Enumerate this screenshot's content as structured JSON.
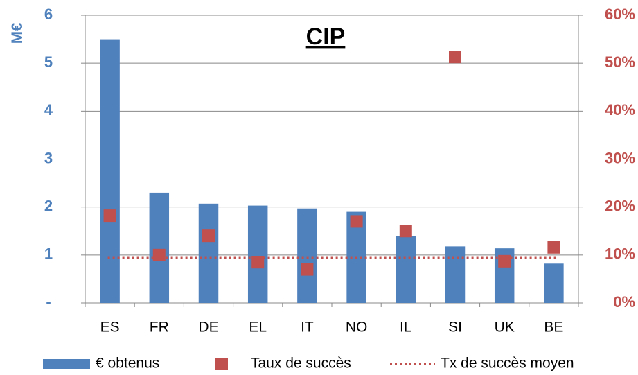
{
  "chart_data": {
    "type": "bar",
    "title": "CIP",
    "y_label": "M€",
    "categories": [
      "ES",
      "FR",
      "DE",
      "EL",
      "IT",
      "NO",
      "IL",
      "SI",
      "UK",
      "BE"
    ],
    "series": [
      {
        "name": "€ obtenus",
        "color": "#4f81bd",
        "values": [
          5.5,
          2.3,
          2.07,
          2.03,
          1.97,
          1.9,
          1.4,
          1.18,
          1.14,
          0.82
        ]
      },
      {
        "name": "Taux de succès",
        "color": "#c0504d",
        "axis": "y2",
        "values": [
          18.2,
          10,
          14,
          8.5,
          7,
          17,
          15,
          51.3,
          8.7,
          11.6
        ]
      }
    ],
    "average": {
      "name": "Tx de succès moyen",
      "color": "#c0504d",
      "axis": "y2",
      "value": 9.4
    },
    "ylim": [
      0,
      6
    ],
    "yticks": [
      {
        "value": 0,
        "label": "-"
      },
      1,
      2,
      3,
      4,
      5,
      6
    ],
    "y2lim": [
      0,
      60
    ],
    "y2ticks": [
      {
        "value": 0,
        "label": "0%"
      },
      {
        "value": 10,
        "label": "10%"
      },
      {
        "value": 20,
        "label": "20%"
      },
      {
        "value": 30,
        "label": "30%"
      },
      {
        "value": 40,
        "label": "40%"
      },
      {
        "value": 50,
        "label": "50%"
      },
      {
        "value": 60,
        "label": "60%"
      }
    ],
    "grid": true,
    "legend": "bottom"
  }
}
